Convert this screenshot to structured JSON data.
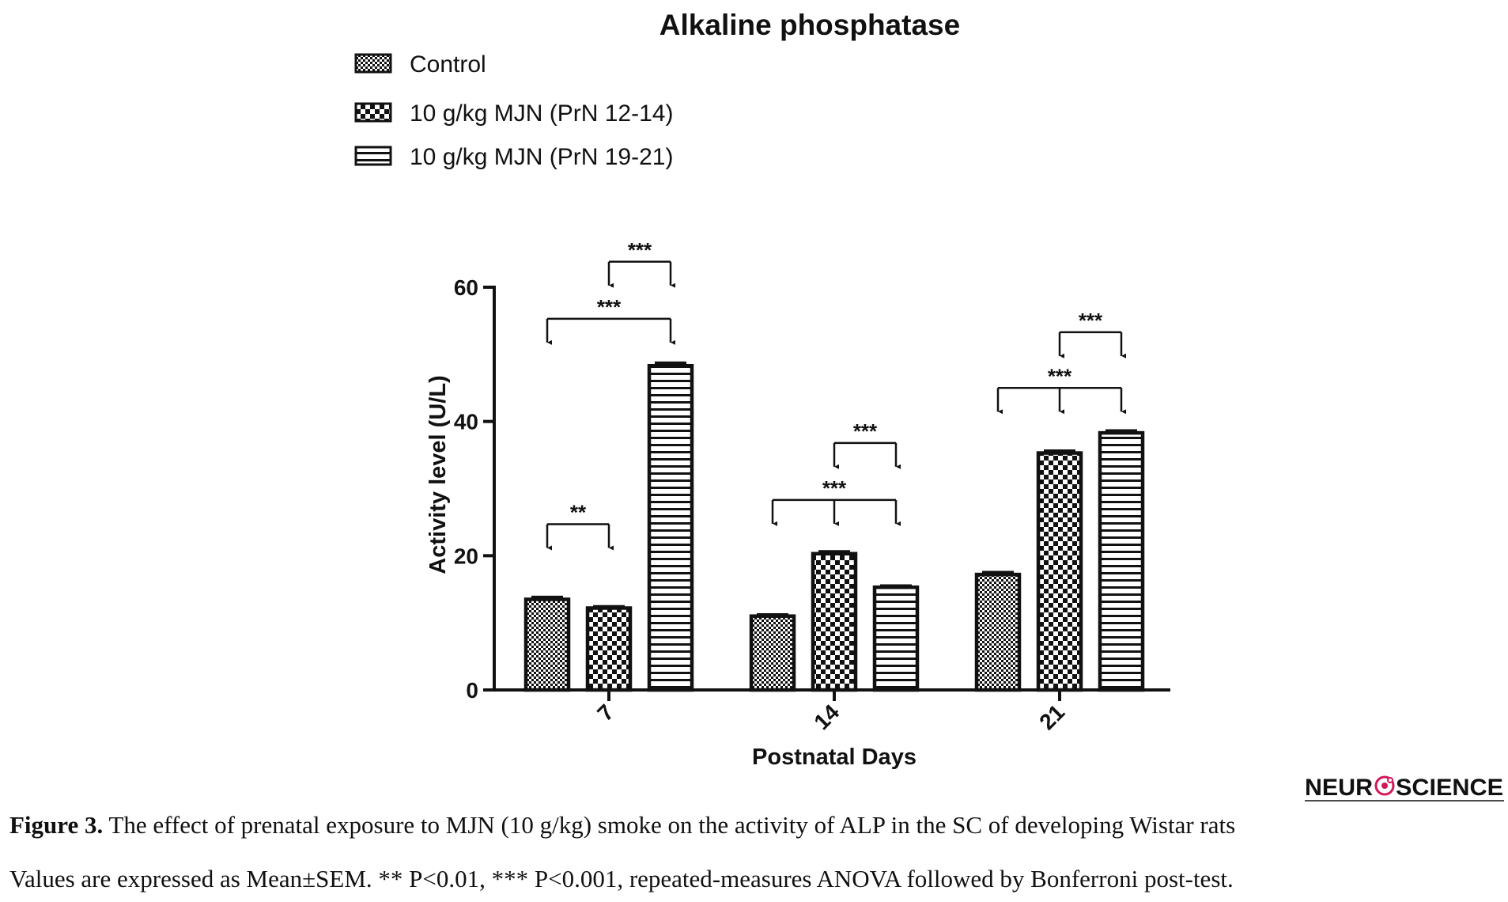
{
  "chart_data": {
    "type": "bar",
    "title": "Alkaline phosphatase",
    "xlabel": "Postnatal Days",
    "ylabel": "Activity level (U/L)",
    "categories": [
      "7",
      "14",
      "21"
    ],
    "ylim": [
      0,
      60
    ],
    "yticks": [
      "0",
      "20",
      "40",
      "60"
    ],
    "legend_position": "top-left",
    "series": [
      {
        "name": "Control",
        "pattern": "fine-checker",
        "values": [
          13.5,
          11.0,
          17.2
        ],
        "sem": [
          0.3,
          0.2,
          0.3
        ]
      },
      {
        "name": "10 g/kg MJN (PrN 12-14)",
        "pattern": "coarse-checker",
        "values": [
          12.2,
          20.3,
          35.3
        ],
        "sem": [
          0.2,
          0.3,
          0.3
        ]
      },
      {
        "name": "10 g/kg MJN (PrN 19-21)",
        "pattern": "horizontal-stripes",
        "values": [
          48.3,
          15.3,
          38.3
        ],
        "sem": [
          0.4,
          0.2,
          0.3
        ]
      }
    ],
    "annotations": [
      {
        "category": 0,
        "from": 0,
        "to": 1,
        "label": "**",
        "level": 24.7
      },
      {
        "category": 0,
        "from": 0,
        "to": 2,
        "label": "***",
        "level": 55.3
      },
      {
        "category": 0,
        "from": 1,
        "to": 2,
        "label": "***",
        "level": 63.8
      },
      {
        "category": 1,
        "from": 0,
        "to": 2,
        "label": "***",
        "level": 28.3,
        "mid_arrow": true
      },
      {
        "category": 1,
        "from": 1,
        "to": 2,
        "label": "***",
        "level": 36.8
      },
      {
        "category": 2,
        "from": 0,
        "to": 2,
        "label": "***",
        "level": 45.0,
        "mid_arrow": true
      },
      {
        "category": 2,
        "from": 1,
        "to": 2,
        "label": "***",
        "level": 53.3
      }
    ]
  },
  "caption": {
    "label": "Figure 3.",
    "text": " The effect of prenatal exposure to MJN (10 g/kg) smoke on the activity of ALP in the SC of developing Wistar rats",
    "note": "Values are expressed as Mean±SEM. ** P<0.01, *** P<0.001, repeated-measures ANOVA followed by Bonferroni post-test."
  },
  "logo": {
    "left": "NEUR",
    "right": "SCIENCE"
  },
  "colors": {
    "ink": "#111111",
    "background": "#ffffff"
  }
}
